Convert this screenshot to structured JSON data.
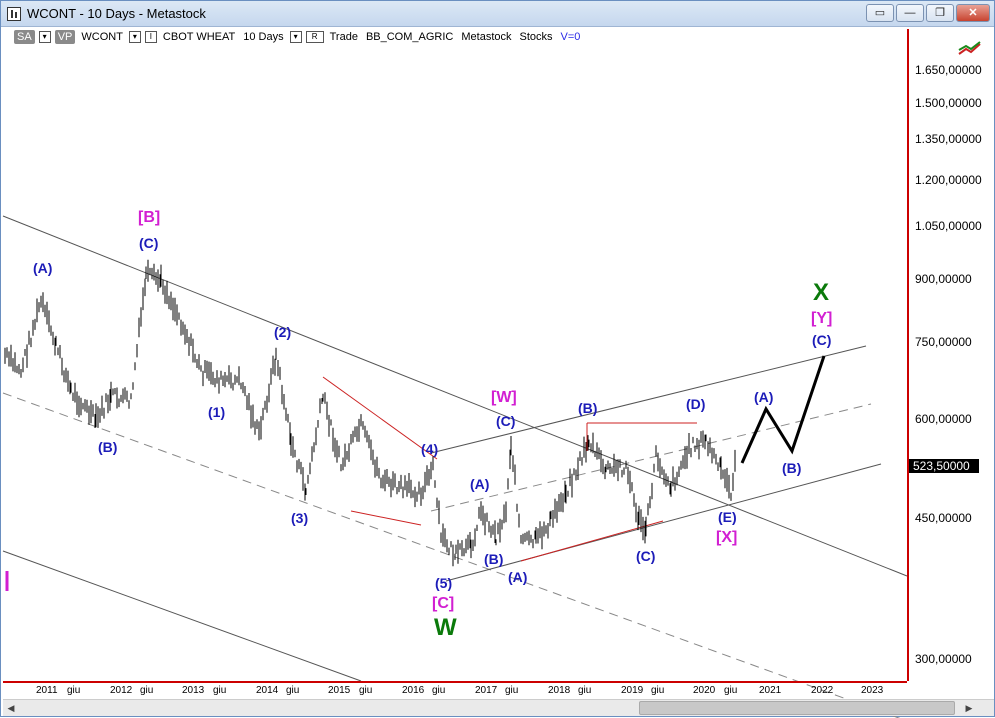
{
  "window": {
    "title": "WCONT - 10 Days - Metastock",
    "buttons": [
      "▭",
      "—",
      "❐",
      "✕"
    ]
  },
  "toolbar": {
    "sa": "SA",
    "vp": "VP",
    "symbol": "WCONT",
    "interval_marker": "I",
    "name": "CBOT WHEAT",
    "period": "10 Days",
    "r_label": "R",
    "mode": "Trade",
    "source": "BB_COM_AGRIC",
    "app": "Metastock",
    "type": "Stocks",
    "volume": "V=0"
  },
  "price_axis": {
    "labels": [
      "1.650,00000",
      "1.500,00000",
      "1.350,00000",
      "1.200,00000",
      "1.050,00000",
      "900,00000",
      "750,00000",
      "600,00000",
      "450,00000",
      "300,00000"
    ],
    "current_price": "523,50000"
  },
  "time_axis": {
    "labels": [
      "2011",
      "giu",
      "2012",
      "giu",
      "2013",
      "giu",
      "2014",
      "giu",
      "2015",
      "giu",
      "2016",
      "giu",
      "2017",
      "giu",
      "2018",
      "giu",
      "2019",
      "giu",
      "2020",
      "giu",
      "2021",
      "2022",
      "2023"
    ]
  },
  "wave_labels": [
    {
      "text": "(A)",
      "style": "blue"
    },
    {
      "text": "(B)",
      "style": "blue"
    },
    {
      "text": "[B]",
      "style": "mag"
    },
    {
      "text": "(C)",
      "style": "blue"
    },
    {
      "text": "(1)",
      "style": "blue"
    },
    {
      "text": "(2)",
      "style": "blue"
    },
    {
      "text": "(3)",
      "style": "blue"
    },
    {
      "text": "(4)",
      "style": "blue"
    },
    {
      "text": "(5)",
      "style": "blue"
    },
    {
      "text": "[C]",
      "style": "mag"
    },
    {
      "text": "W",
      "style": "grn"
    },
    {
      "text": "(A)",
      "style": "blue"
    },
    {
      "text": "(B)",
      "style": "blue"
    },
    {
      "text": "(A)",
      "style": "blue"
    },
    {
      "text": "[W]",
      "style": "mag"
    },
    {
      "text": "(C)",
      "style": "blue"
    },
    {
      "text": "(B)",
      "style": "blue"
    },
    {
      "text": "(C)",
      "style": "blue"
    },
    {
      "text": "(D)",
      "style": "blue"
    },
    {
      "text": "(E)",
      "style": "blue"
    },
    {
      "text": "[X]",
      "style": "mag"
    },
    {
      "text": "(A)",
      "style": "blue"
    },
    {
      "text": "(B)",
      "style": "blue"
    },
    {
      "text": "(C)",
      "style": "blue"
    },
    {
      "text": "[Y]",
      "style": "mag"
    },
    {
      "text": "X",
      "style": "grn"
    }
  ],
  "colors": {
    "axis": "#cc0000",
    "wave_blue": "#1c1cb8",
    "wave_magenta": "#d21fd2",
    "wave_green": "#0b7a0b",
    "trendline_red": "#cc2222",
    "projection": "#000000"
  },
  "icons": {
    "tool": "trendline-tool-icon"
  }
}
